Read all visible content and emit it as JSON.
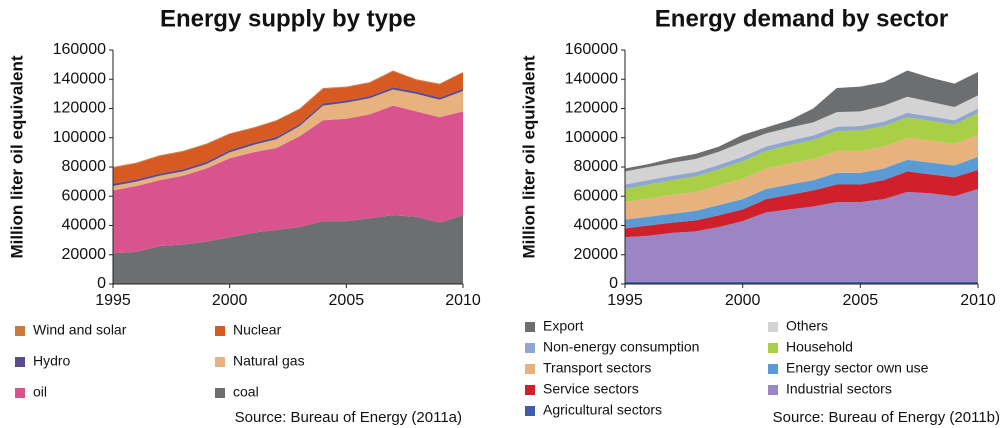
{
  "chart_data": [
    {
      "type": "area",
      "stacked": true,
      "title": "Energy supply by type",
      "y_label": "Million liter oil equivalent",
      "source": "Source: Bureau of Energy (2011a)",
      "x": [
        1995,
        1996,
        1997,
        1998,
        1999,
        2000,
        2001,
        2002,
        2003,
        2004,
        2005,
        2006,
        2007,
        2008,
        2009,
        2010
      ],
      "xlim": [
        1995,
        2010
      ],
      "xticks": [
        1995,
        2000,
        2005,
        2010
      ],
      "ylim": [
        0,
        160000
      ],
      "yticks": [
        0,
        20000,
        40000,
        60000,
        80000,
        100000,
        120000,
        140000,
        160000
      ],
      "legend_columns": 2,
      "series": [
        {
          "name": "Wind and solar",
          "color": "#c87a3a",
          "values": [
            500,
            500,
            500,
            500,
            500,
            500,
            500,
            500,
            500,
            500,
            500,
            500,
            500,
            500,
            500,
            500
          ]
        },
        {
          "name": "Nuclear",
          "color": "#d85a23",
          "values": [
            11000,
            11000,
            12000,
            12000,
            12000,
            11000,
            10000,
            11000,
            10000,
            10000,
            9000,
            9000,
            11000,
            8000,
            9000,
            11000
          ]
        },
        {
          "name": "Hydro",
          "color": "#5b4a8c",
          "values": [
            1500,
            1500,
            1500,
            1500,
            1500,
            1500,
            1500,
            1500,
            1500,
            1500,
            1500,
            1500,
            1500,
            1500,
            1500,
            1500
          ]
        },
        {
          "name": "Natural gas",
          "color": "#e8b27e",
          "values": [
            3000,
            3000,
            3000,
            3000,
            3000,
            4000,
            5000,
            6000,
            7000,
            10000,
            11000,
            11000,
            11000,
            12000,
            12000,
            14000
          ]
        },
        {
          "name": "oil",
          "color": "#d9548f",
          "values": [
            43000,
            45000,
            45000,
            47000,
            50000,
            54000,
            55000,
            56000,
            62000,
            69000,
            70000,
            71000,
            75000,
            72000,
            72000,
            71000
          ]
        },
        {
          "name": "coal",
          "color": "#6d6e70",
          "values": [
            21000,
            22000,
            26000,
            27000,
            29000,
            32000,
            35000,
            37000,
            39000,
            43000,
            43000,
            45000,
            47000,
            46000,
            42000,
            47000
          ]
        }
      ]
    },
    {
      "type": "area",
      "stacked": true,
      "title": "Energy demand by sector",
      "y_label": "Million liter oil equivalent",
      "source": "Source: Bureau of Energy (2011b)",
      "x": [
        1995,
        1996,
        1997,
        1998,
        1999,
        2000,
        2001,
        2002,
        2003,
        2004,
        2005,
        2006,
        2007,
        2008,
        2009,
        2010
      ],
      "xlim": [
        1995,
        2010
      ],
      "xticks": [
        1995,
        2000,
        2005,
        2010
      ],
      "ylim": [
        0,
        160000
      ],
      "yticks": [
        0,
        20000,
        40000,
        60000,
        80000,
        100000,
        120000,
        140000,
        160000
      ],
      "legend_columns": 2,
      "series": [
        {
          "name": "Export",
          "color": "#6d6e70",
          "values": [
            2000,
            2000,
            3000,
            3500,
            3500,
            5000,
            4000,
            5000,
            9500,
            16500,
            17000,
            16000,
            18000,
            16500,
            16000,
            16000
          ]
        },
        {
          "name": "Others",
          "color": "#d3d3d3",
          "values": [
            9000,
            9000,
            9000,
            9000,
            9000,
            10000,
            9000,
            9000,
            9000,
            10000,
            10000,
            11000,
            11000,
            10000,
            9000,
            9000
          ]
        },
        {
          "name": "Non-energy consumption",
          "color": "#8fa6d0",
          "values": [
            3000,
            3000,
            3000,
            3000,
            3000,
            3000,
            3000,
            3000,
            3000,
            3000,
            3000,
            3000,
            3000,
            3000,
            3000,
            3000
          ]
        },
        {
          "name": "Household",
          "color": "#a8cf45",
          "values": [
            9000,
            9500,
            10000,
            10500,
            11000,
            12000,
            12000,
            12500,
            13000,
            13500,
            14000,
            14000,
            14000,
            13500,
            13000,
            15000
          ]
        },
        {
          "name": "Transport sectors",
          "color": "#e8b27e",
          "values": [
            12000,
            12500,
            13000,
            13000,
            13500,
            14000,
            14000,
            14500,
            14500,
            15000,
            15000,
            15000,
            15000,
            15000,
            15000,
            15000
          ]
        },
        {
          "name": "Energy sector own use",
          "color": "#5b9bd5",
          "values": [
            6000,
            6000,
            6000,
            6500,
            7000,
            7000,
            7000,
            7000,
            7000,
            8000,
            8000,
            8000,
            8000,
            8000,
            8000,
            9000
          ]
        },
        {
          "name": "Service sectors",
          "color": "#d0202c",
          "values": [
            6000,
            7000,
            7000,
            7500,
            8000,
            8000,
            9000,
            10000,
            11000,
            12000,
            12000,
            13000,
            14000,
            13000,
            13000,
            13000
          ]
        },
        {
          "name": "Industrial sectors",
          "color": "#9b86c3",
          "values": [
            30500,
            31500,
            33500,
            34500,
            37500,
            41500,
            47500,
            49500,
            51500,
            54500,
            54500,
            56500,
            61500,
            60500,
            58500,
            63500
          ]
        },
        {
          "name": "Agricultural sectors",
          "color": "#3f5ba9",
          "values": [
            1500,
            1500,
            1500,
            1500,
            1500,
            1500,
            1500,
            1500,
            1500,
            1500,
            1500,
            1500,
            1500,
            1500,
            1500,
            1500
          ]
        }
      ]
    }
  ]
}
